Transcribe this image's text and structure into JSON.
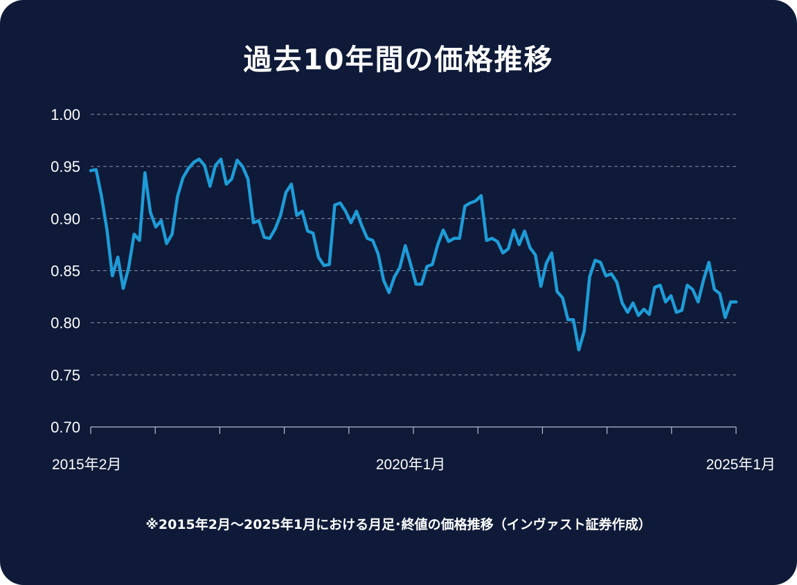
{
  "colors": {
    "background": "#0e1a38",
    "line": "#1e9cd7",
    "grid": "#8a94aa",
    "text": "#ffffff"
  },
  "chart_data": {
    "type": "line",
    "title": "過去10年間の価格推移",
    "xlabel": "",
    "ylabel": "",
    "ylim": [
      0.7,
      1.0
    ],
    "yticks": [
      "1.00",
      "0.95",
      "0.90",
      "0.85",
      "0.80",
      "0.75",
      "0.70"
    ],
    "ytick_values": [
      1.0,
      0.95,
      0.9,
      0.85,
      0.8,
      0.75,
      0.7
    ],
    "xtick_labels": [
      {
        "label": "2015年2月",
        "index": 0
      },
      {
        "label": "2020年1月",
        "index": 59
      },
      {
        "label": "2025年1月",
        "index": 119
      }
    ],
    "x_minor_ticks": 11,
    "grid": true,
    "x_start": "2015年2月",
    "x_end": "2025年1月",
    "frequency": "monthly",
    "series": [
      {
        "name": "月足・終値",
        "values": [
          0.946,
          0.947,
          0.921,
          0.889,
          0.845,
          0.863,
          0.833,
          0.853,
          0.885,
          0.879,
          0.944,
          0.906,
          0.892,
          0.898,
          0.876,
          0.885,
          0.921,
          0.939,
          0.948,
          0.954,
          0.957,
          0.951,
          0.931,
          0.951,
          0.957,
          0.933,
          0.938,
          0.956,
          0.95,
          0.938,
          0.896,
          0.898,
          0.882,
          0.881,
          0.89,
          0.903,
          0.925,
          0.933,
          0.903,
          0.907,
          0.888,
          0.886,
          0.863,
          0.855,
          0.856,
          0.913,
          0.915,
          0.907,
          0.896,
          0.907,
          0.893,
          0.881,
          0.879,
          0.866,
          0.841,
          0.829,
          0.844,
          0.853,
          0.874,
          0.856,
          0.837,
          0.837,
          0.854,
          0.856,
          0.875,
          0.889,
          0.878,
          0.881,
          0.881,
          0.912,
          0.915,
          0.917,
          0.922,
          0.879,
          0.881,
          0.878,
          0.867,
          0.871,
          0.889,
          0.875,
          0.888,
          0.872,
          0.865,
          0.835,
          0.857,
          0.867,
          0.83,
          0.824,
          0.803,
          0.803,
          0.774,
          0.792,
          0.844,
          0.86,
          0.858,
          0.845,
          0.847,
          0.839,
          0.819,
          0.81,
          0.819,
          0.807,
          0.813,
          0.808,
          0.834,
          0.836,
          0.82,
          0.826,
          0.81,
          0.812,
          0.836,
          0.832,
          0.82,
          0.841,
          0.858,
          0.832,
          0.828,
          0.805,
          0.82,
          0.82
        ]
      }
    ],
    "footnote": "※2015年2月〜2025年1月における月足･終値の価格推移（インヴァスト証券作成）"
  }
}
